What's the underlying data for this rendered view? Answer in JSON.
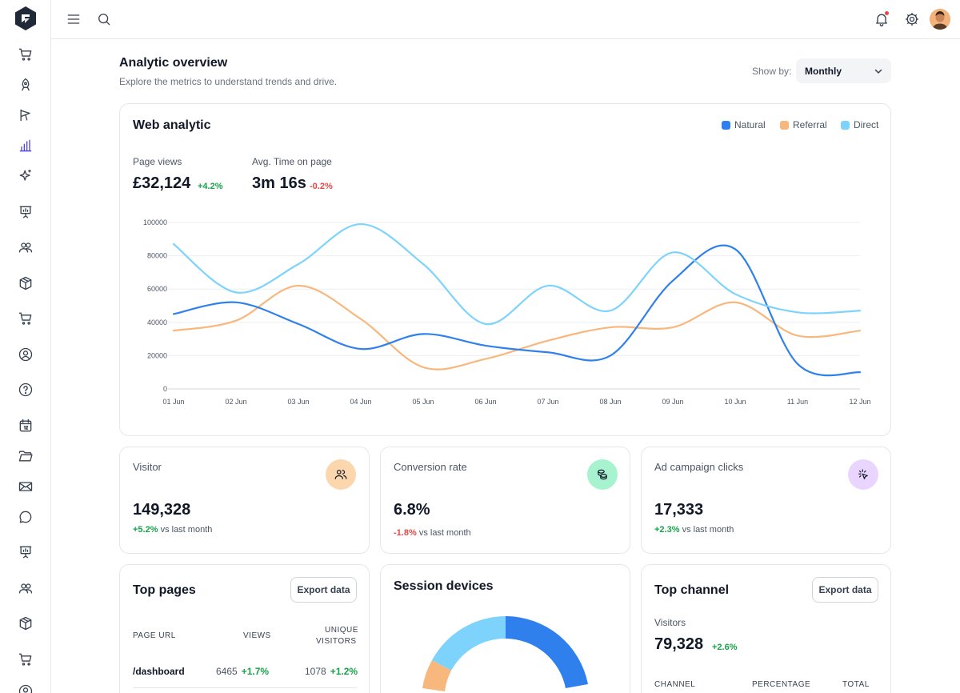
{
  "header": {
    "title": "Analytic overview",
    "subtitle": "Explore the metrics to understand trends and drive.",
    "show_by_label": "Show by:",
    "show_by_value": "Monthly"
  },
  "web_analytic": {
    "title": "Web analytic",
    "legend": [
      {
        "label": "Natural",
        "color": "#2f80ed"
      },
      {
        "label": "Referral",
        "color": "#f8b77c"
      },
      {
        "label": "Direct",
        "color": "#7dd3fc"
      }
    ],
    "page_views": {
      "label": "Page views",
      "value": "£32,124",
      "delta": "+4.2%"
    },
    "avg_time": {
      "label": "Avg. Time on page",
      "value": "3m 16s",
      "delta": "-0.2%"
    }
  },
  "chart_data": {
    "type": "line",
    "x": [
      "01 Jun",
      "02 Jun",
      "03 Jun",
      "04 Jun",
      "05 Jun",
      "06 Jun",
      "07 Jun",
      "08 Jun",
      "09 Jun",
      "10 Jun",
      "11 Jun",
      "12 Jun"
    ],
    "y_ticks": [
      0,
      20000,
      40000,
      60000,
      80000,
      100000
    ],
    "ylim": [
      0,
      100000
    ],
    "grid": true,
    "series": [
      {
        "name": "Natural",
        "color": "#2f80ed",
        "values": [
          45000,
          52000,
          39000,
          24000,
          33000,
          26000,
          22000,
          20000,
          65000,
          84000,
          15000,
          10000
        ]
      },
      {
        "name": "Referral",
        "color": "#f8b77c",
        "values": [
          35000,
          41000,
          62000,
          42000,
          13000,
          18000,
          29000,
          37000,
          37000,
          52000,
          32000,
          35000
        ]
      },
      {
        "name": "Direct",
        "color": "#7dd3fc",
        "values": [
          87000,
          58000,
          75000,
          99000,
          75000,
          39000,
          62000,
          47000,
          82000,
          57000,
          46000,
          47000
        ]
      }
    ]
  },
  "stats": [
    {
      "label": "Visitor",
      "value": "149,328",
      "delta": "+5.2%",
      "delta_dir": "up",
      "suffix": "vs last month",
      "icon": "users-icon",
      "icon_bg": "#fcd6ad"
    },
    {
      "label": "Conversion rate",
      "value": "6.8%",
      "delta": "-1.8%",
      "delta_dir": "down",
      "suffix": "vs last month",
      "icon": "coins-icon",
      "icon_bg": "#a7f3d0"
    },
    {
      "label": "Ad campaign clicks",
      "value": "17,333",
      "delta": "+2.3%",
      "delta_dir": "up",
      "suffix": "vs last month",
      "icon": "cursor-click-icon",
      "icon_bg": "#e9d5ff"
    }
  ],
  "top_pages": {
    "title": "Top pages",
    "export_label": "Export data",
    "columns": [
      "PAGE URL",
      "VIEWS",
      "UNIQUE",
      "VISITORS"
    ],
    "rows": [
      {
        "url": "/dashboard",
        "views": "6465",
        "views_delta": "+1.7%",
        "unique": "1078",
        "unique_delta": "+1.2%"
      }
    ]
  },
  "session_devices": {
    "title": "Session devices"
  },
  "top_channel": {
    "title": "Top channel",
    "export_label": "Export data",
    "visitors_label": "Visitors",
    "visitors_value": "79,328",
    "visitors_delta": "+2.6%",
    "columns": [
      "CHANNEL",
      "PERCENTAGE",
      "TOTAL"
    ]
  }
}
